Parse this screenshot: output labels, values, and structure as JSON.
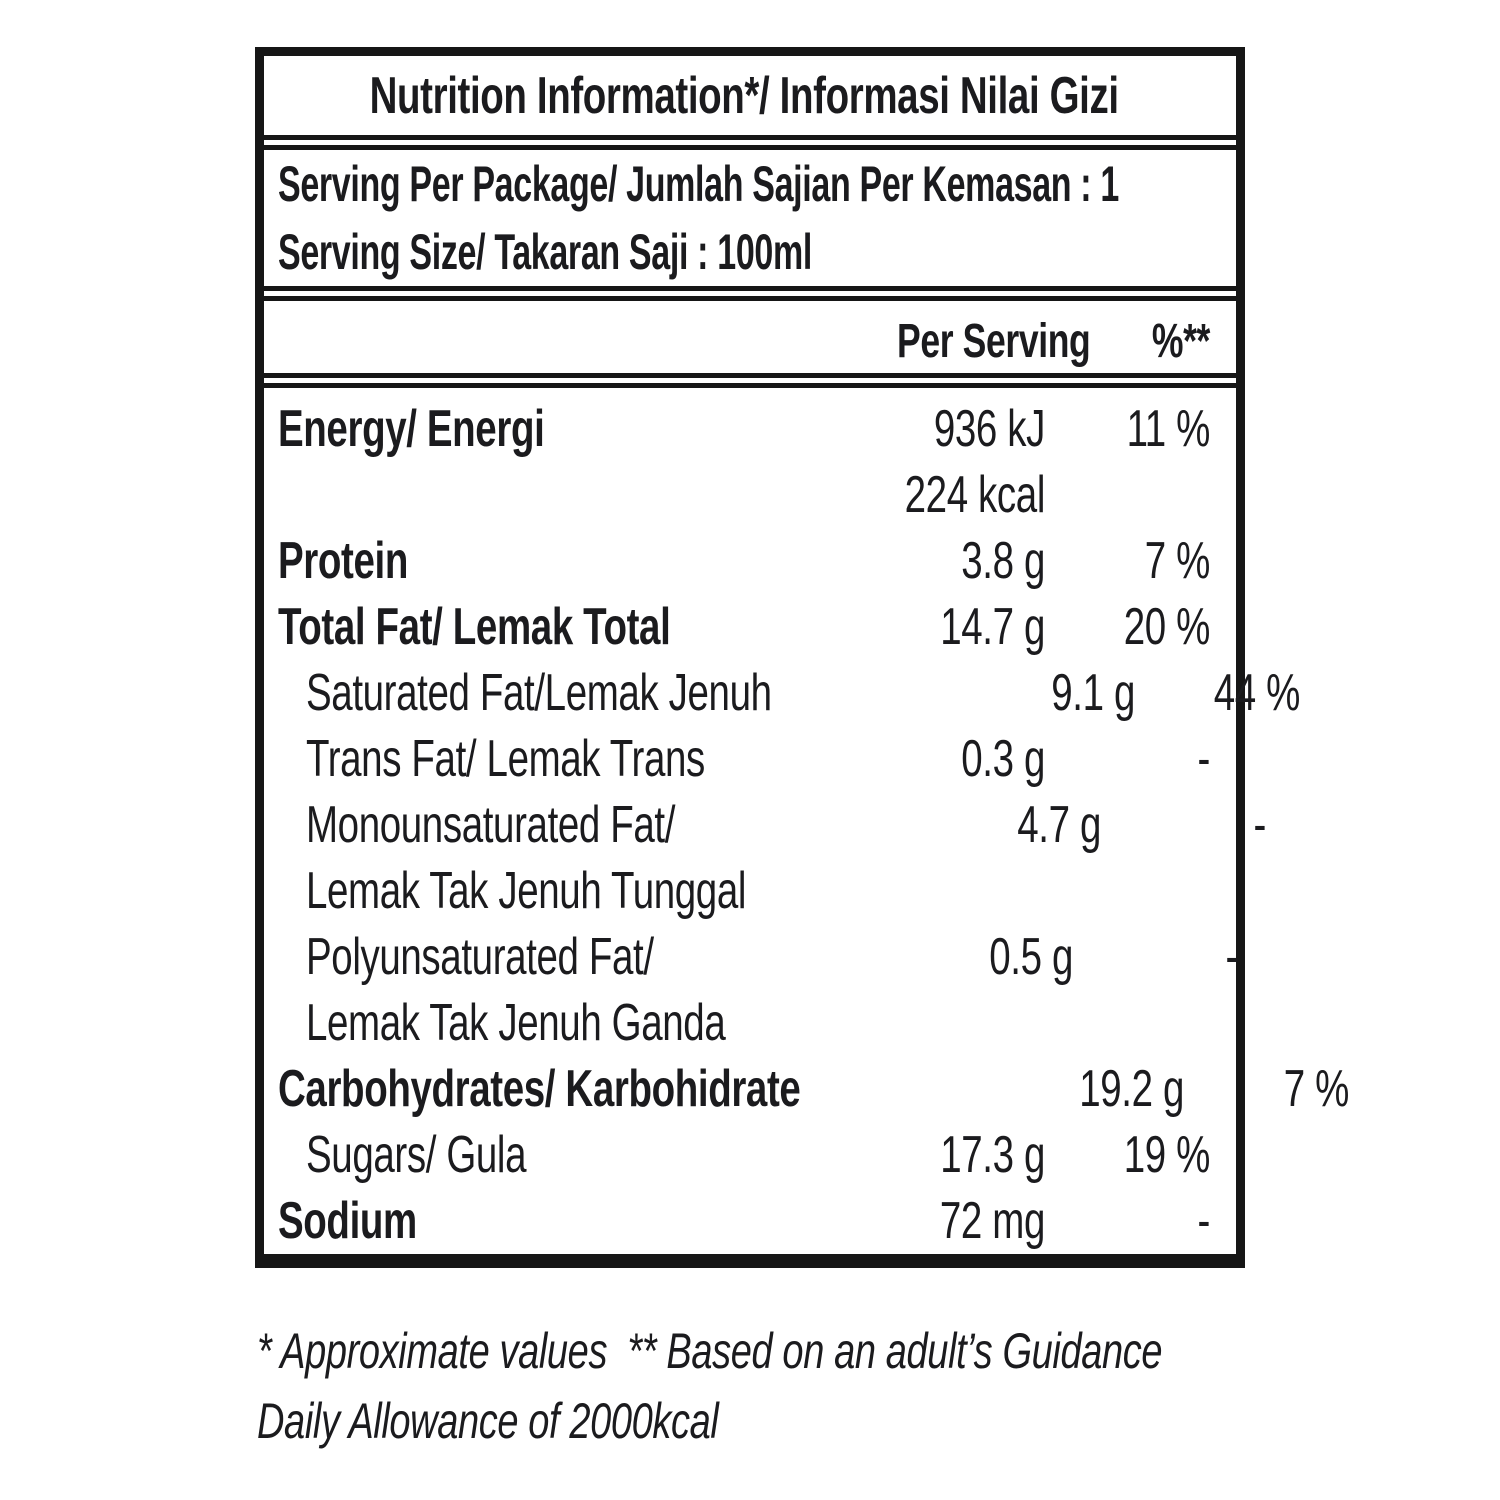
{
  "label": {
    "title": "Nutrition Information*/ Informasi Nilai Gizi",
    "serving_per_package": "Serving Per Package/ Jumlah Sajian Per Kemasan : 1",
    "serving_size": "Serving Size/ Takaran Saji : 100ml",
    "columns": {
      "per_serving": "Per Serving",
      "percent": "%**"
    },
    "rows": [
      {
        "name": "energy",
        "label": "Energy/ Energi",
        "bold": true,
        "indent": false,
        "values": [
          "936 kJ",
          "224 kcal"
        ],
        "percent": "11 %"
      },
      {
        "name": "protein",
        "label": "Protein",
        "bold": true,
        "indent": false,
        "values": [
          "3.8 g"
        ],
        "percent": "7 %"
      },
      {
        "name": "total-fat",
        "label": "Total Fat/ Lemak Total",
        "bold": true,
        "indent": false,
        "values": [
          "14.7 g"
        ],
        "percent": "20 %"
      },
      {
        "name": "saturated-fat",
        "label": "Saturated Fat/Lemak Jenuh",
        "bold": false,
        "indent": true,
        "values": [
          "9.1 g"
        ],
        "percent": "44 %"
      },
      {
        "name": "trans-fat",
        "label": "Trans Fat/ Lemak Trans",
        "bold": false,
        "indent": true,
        "values": [
          "0.3 g"
        ],
        "percent": "-"
      },
      {
        "name": "monounsaturated-fat",
        "label": "Monounsaturated Fat/",
        "label2": "Lemak Tak Jenuh Tunggal",
        "bold": false,
        "indent": true,
        "values": [
          "4.7 g"
        ],
        "percent": "-"
      },
      {
        "name": "polyunsaturated-fat",
        "label": "Polyunsaturated Fat/",
        "label2": "Lemak Tak Jenuh Ganda",
        "bold": false,
        "indent": true,
        "values": [
          "0.5 g"
        ],
        "percent": "-"
      },
      {
        "name": "carbohydrates",
        "label": "Carbohydrates/ Karbohidrate",
        "bold": true,
        "indent": false,
        "values": [
          "19.2 g"
        ],
        "percent": "7 %"
      },
      {
        "name": "sugars",
        "label": "Sugars/ Gula",
        "bold": false,
        "indent": true,
        "values": [
          "17.3 g"
        ],
        "percent": "19 %"
      },
      {
        "name": "sodium",
        "label": "Sodium",
        "bold": true,
        "indent": false,
        "values": [
          "72 mg"
        ],
        "percent": "-"
      }
    ],
    "footnote_line1": "* Approximate values  ** Based on an adult’s Guidance",
    "footnote_line2": "Daily Allowance of 2000kcal"
  },
  "colors": {
    "text": "#1b1b1e",
    "border": "#161616",
    "background": "#ffffff"
  }
}
